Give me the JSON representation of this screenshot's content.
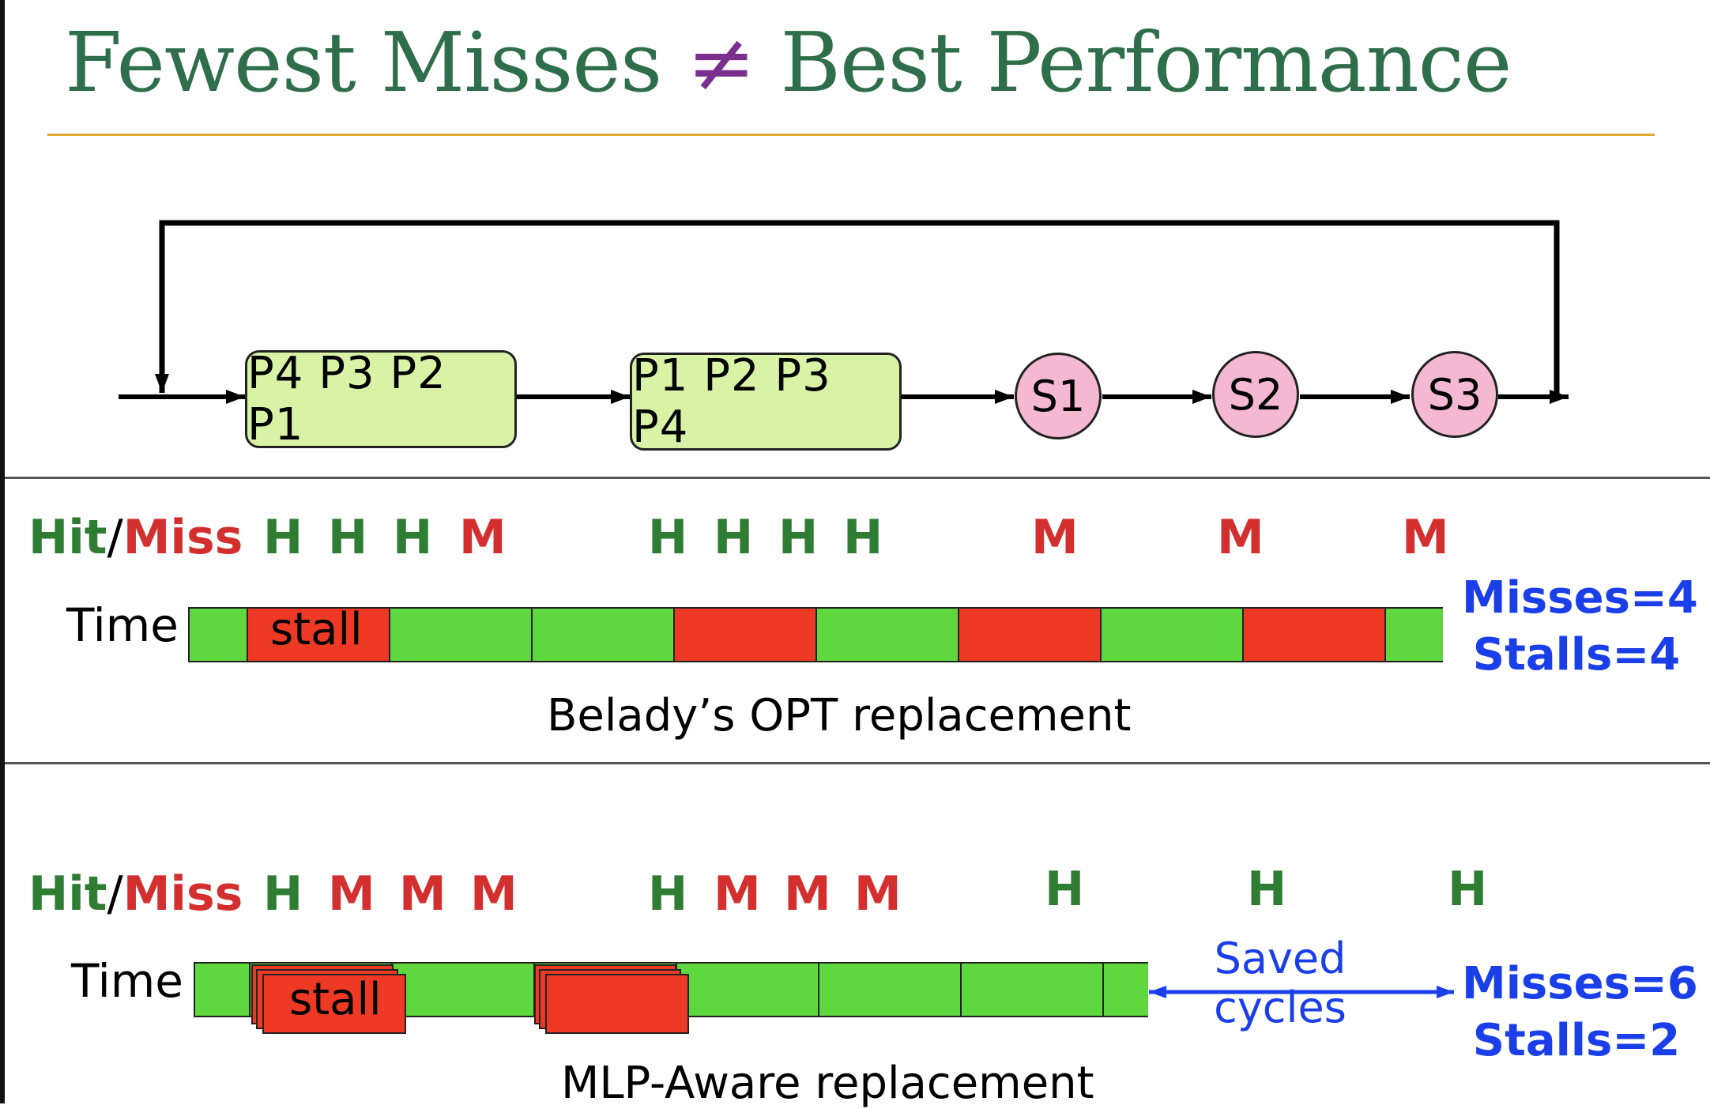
{
  "title": {
    "left": "Fewest Misses",
    "symbol": "≠",
    "right": "Best Performance"
  },
  "colors": {
    "hit": "#2e7d32",
    "miss": "#d32f2f",
    "green_seg": "#5fd83f",
    "red_seg": "#ee3a24",
    "stats": "#1a3ee8",
    "title": "#2f6e4a",
    "gold_rule": "#e0a733"
  },
  "access_pattern": {
    "group1": "P4 P3 P2 P1",
    "group2": "P1 P2 P3 P4",
    "singles": [
      "S1",
      "S2",
      "S3"
    ]
  },
  "labels": {
    "hit": "Hit",
    "slash": "/",
    "miss": "Miss",
    "time": "Time",
    "stall": "stall"
  },
  "belady": {
    "hit_miss": [
      "H",
      "H",
      "H",
      "M",
      "H",
      "H",
      "H",
      "H",
      "M",
      "M",
      "M"
    ],
    "stats": {
      "misses": "Misses=4",
      "stalls": "Stalls=4"
    },
    "caption": "Belady’s OPT replacement"
  },
  "mlp": {
    "hit_miss": [
      "H",
      "M",
      "M",
      "M",
      "H",
      "M",
      "M",
      "M",
      "H",
      "H",
      "H"
    ],
    "stats": {
      "misses": "Misses=6",
      "stalls": "Stalls=2"
    },
    "saved": {
      "line1": "Saved",
      "line2": "cycles"
    },
    "caption": "MLP-Aware replacement"
  }
}
